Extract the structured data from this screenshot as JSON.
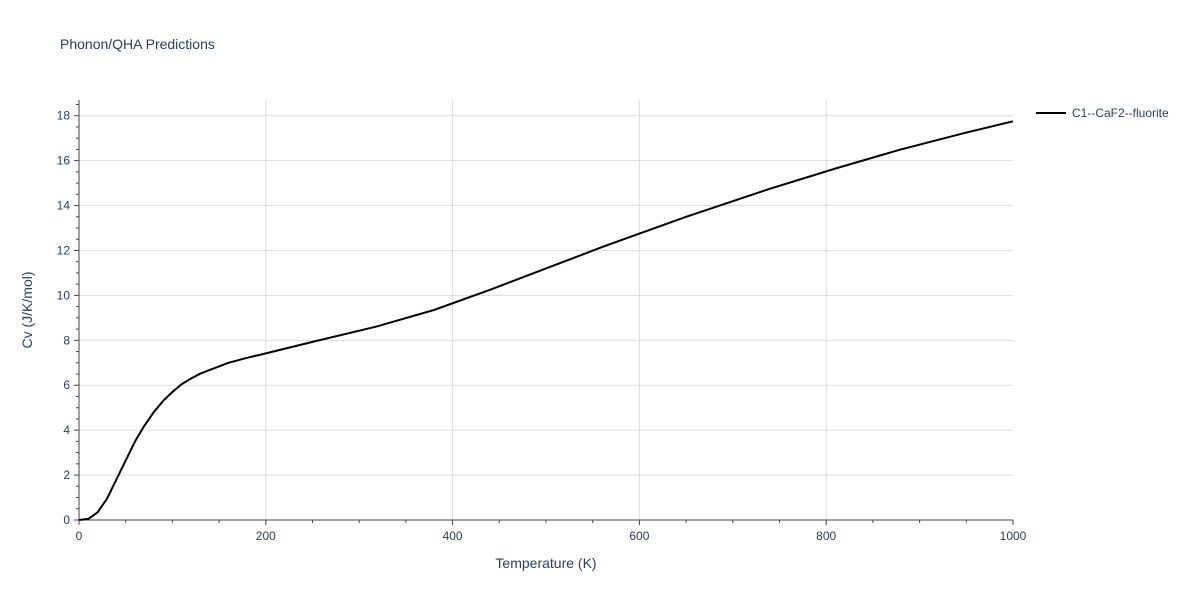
{
  "chart_data": {
    "type": "line",
    "title": "Phonon/QHA Predictions",
    "xlabel": "Temperature (K)",
    "ylabel": "Cv (J/K/mol)",
    "xlim": [
      0,
      1000
    ],
    "ylim": [
      0,
      18.7
    ],
    "x_ticks": [
      0,
      200,
      400,
      600,
      800,
      1000
    ],
    "y_ticks": [
      0,
      2,
      4,
      6,
      8,
      10,
      12,
      14,
      16,
      18
    ],
    "grid": true,
    "legend_position": "top-right",
    "series": [
      {
        "name": "C1--CaF2--fluorite",
        "color": "#000000",
        "x": [
          0,
          10,
          20,
          30,
          40,
          50,
          60,
          70,
          80,
          90,
          100,
          110,
          120,
          130,
          140,
          160,
          180,
          200,
          250,
          300,
          320,
          380,
          440,
          500,
          560,
          650,
          740,
          810,
          880,
          950,
          1000
        ],
        "y": [
          0,
          0.05,
          0.35,
          0.95,
          1.8,
          2.65,
          3.5,
          4.2,
          4.8,
          5.3,
          5.7,
          6.05,
          6.3,
          6.52,
          6.68,
          7.0,
          7.22,
          7.42,
          7.93,
          8.43,
          8.63,
          9.35,
          10.25,
          11.2,
          12.15,
          13.5,
          14.75,
          15.65,
          16.5,
          17.25,
          17.75
        ]
      }
    ]
  }
}
